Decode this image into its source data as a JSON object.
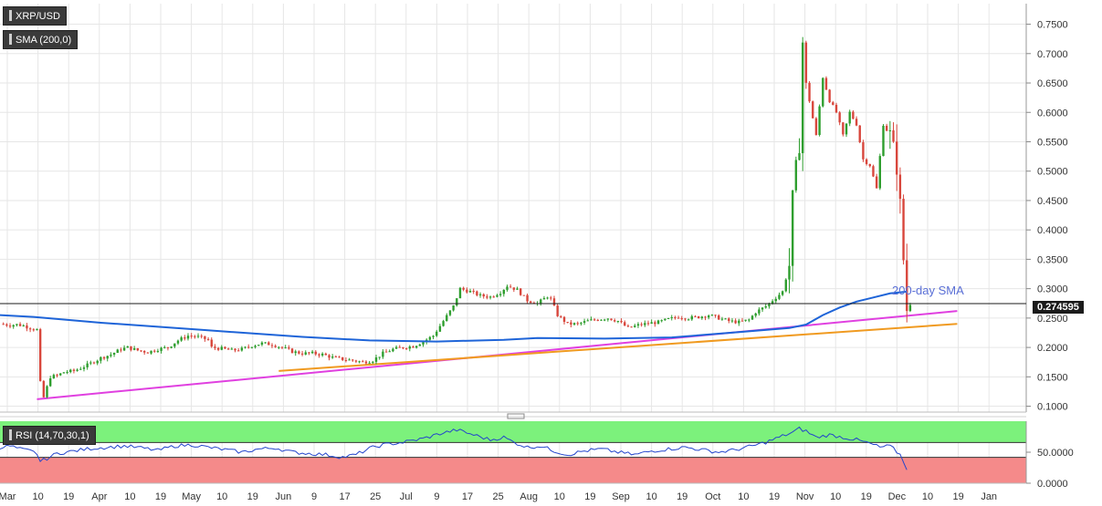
{
  "legend": {
    "symbol": "XRP/USD",
    "sma": "SMA (200,0)",
    "rsi": "RSI (14,70,30,1)"
  },
  "last_price": "0.274595",
  "annotations": {
    "sma_label": "200-day SMA"
  },
  "colors": {
    "background": "#ffffff",
    "grid": "#e6e6e6",
    "bull_candle": "#2e9e2e",
    "bear_candle": "#d8463c",
    "sma_line": "#1e64d8",
    "support_line": "#e040e0",
    "trend_line": "#f09a20",
    "rsi_line": "#2244cc",
    "rsi_overbought_zone": "#7cf17c",
    "rsi_oversold_zone": "#f58a8a"
  },
  "chart_data": [
    {
      "type": "candlestick",
      "title": "XRP/USD",
      "x_tick_labels": [
        "Mar",
        "10",
        "19",
        "Apr",
        "10",
        "19",
        "May",
        "10",
        "19",
        "Jun",
        "9",
        "17",
        "25",
        "Jul",
        "9",
        "17",
        "25",
        "Aug",
        "10",
        "19",
        "Sep",
        "10",
        "19",
        "Oct",
        "10",
        "19",
        "Nov",
        "10",
        "19",
        "Dec",
        "10",
        "19",
        "Jan"
      ],
      "y_tick_labels": [
        "0.1000",
        "0.1500",
        "0.2000",
        "0.2500",
        "0.3000",
        "0.3500",
        "0.4000",
        "0.4500",
        "0.5000",
        "0.5500",
        "0.6000",
        "0.6500",
        "0.7000",
        "0.7500"
      ],
      "ylim": [
        0.09,
        0.785
      ],
      "close_path": [
        [
          0,
          0.24
        ],
        [
          3,
          0.238
        ],
        [
          5,
          0.239
        ],
        [
          7,
          0.237
        ],
        [
          9,
          0.233
        ],
        [
          11,
          0.23
        ],
        [
          12,
          0.14
        ],
        [
          13,
          0.115
        ],
        [
          15,
          0.15
        ],
        [
          17,
          0.152
        ],
        [
          19,
          0.158
        ],
        [
          22,
          0.16
        ],
        [
          26,
          0.17
        ],
        [
          30,
          0.182
        ],
        [
          33,
          0.188
        ],
        [
          36,
          0.197
        ],
        [
          38,
          0.2
        ],
        [
          41,
          0.195
        ],
        [
          44,
          0.192
        ],
        [
          47,
          0.197
        ],
        [
          50,
          0.2
        ],
        [
          53,
          0.212
        ],
        [
          56,
          0.22
        ],
        [
          59,
          0.218
        ],
        [
          62,
          0.213
        ],
        [
          63,
          0.2
        ],
        [
          66,
          0.198
        ],
        [
          69,
          0.195
        ],
        [
          72,
          0.197
        ],
        [
          75,
          0.203
        ],
        [
          78,
          0.207
        ],
        [
          81,
          0.205
        ],
        [
          84,
          0.2
        ],
        [
          87,
          0.193
        ],
        [
          90,
          0.19
        ],
        [
          93,
          0.19
        ],
        [
          96,
          0.188
        ],
        [
          99,
          0.183
        ],
        [
          102,
          0.18
        ],
        [
          105,
          0.178
        ],
        [
          108,
          0.175
        ],
        [
          111,
          0.178
        ],
        [
          114,
          0.19
        ],
        [
          117,
          0.197
        ],
        [
          120,
          0.2
        ],
        [
          123,
          0.202
        ],
        [
          126,
          0.21
        ],
        [
          129,
          0.22
        ],
        [
          132,
          0.245
        ],
        [
          135,
          0.27
        ],
        [
          137,
          0.3
        ],
        [
          140,
          0.295
        ],
        [
          143,
          0.288
        ],
        [
          146,
          0.286
        ],
        [
          149,
          0.294
        ],
        [
          151,
          0.305
        ],
        [
          154,
          0.298
        ],
        [
          157,
          0.28
        ],
        [
          160,
          0.275
        ],
        [
          163,
          0.287
        ],
        [
          164,
          0.282
        ],
        [
          166,
          0.255
        ],
        [
          169,
          0.24
        ],
        [
          172,
          0.24
        ],
        [
          175,
          0.245
        ],
        [
          178,
          0.248
        ],
        [
          181,
          0.25
        ],
        [
          184,
          0.245
        ],
        [
          187,
          0.233
        ],
        [
          190,
          0.238
        ],
        [
          193,
          0.241
        ],
        [
          196,
          0.243
        ],
        [
          199,
          0.248
        ],
        [
          202,
          0.252
        ],
        [
          205,
          0.25
        ],
        [
          208,
          0.252
        ],
        [
          211,
          0.255
        ],
        [
          214,
          0.25
        ],
        [
          217,
          0.245
        ],
        [
          220,
          0.243
        ],
        [
          223,
          0.247
        ],
        [
          225,
          0.26
        ],
        [
          228,
          0.27
        ],
        [
          231,
          0.285
        ],
        [
          233,
          0.295
        ],
        [
          235,
          0.34
        ],
        [
          236,
          0.45
        ],
        [
          238,
          0.55
        ],
        [
          239,
          0.72
        ],
        [
          240,
          0.64
        ],
        [
          241,
          0.62
        ],
        [
          243,
          0.56
        ],
        [
          245,
          0.66
        ],
        [
          247,
          0.62
        ],
        [
          249,
          0.6
        ],
        [
          251,
          0.56
        ],
        [
          253,
          0.6
        ],
        [
          255,
          0.58
        ],
        [
          257,
          0.52
        ],
        [
          259,
          0.51
        ],
        [
          261,
          0.47
        ],
        [
          263,
          0.58
        ],
        [
          265,
          0.56
        ],
        [
          267,
          0.51
        ],
        [
          268,
          0.44
        ],
        [
          269,
          0.35
        ],
        [
          270,
          0.265
        ],
        [
          271,
          0.2746
        ]
      ],
      "volatility_days": [
        [
          235,
          240
        ],
        [
          265,
          270
        ]
      ],
      "sma_200_path": [
        [
          0,
          0.255
        ],
        [
          10,
          0.252
        ],
        [
          30,
          0.242
        ],
        [
          60,
          0.23
        ],
        [
          90,
          0.218
        ],
        [
          110,
          0.212
        ],
        [
          130,
          0.21
        ],
        [
          150,
          0.213
        ],
        [
          160,
          0.216
        ],
        [
          180,
          0.215
        ],
        [
          200,
          0.217
        ],
        [
          220,
          0.226
        ],
        [
          235,
          0.233
        ],
        [
          240,
          0.239
        ],
        [
          245,
          0.255
        ],
        [
          250,
          0.268
        ],
        [
          255,
          0.278
        ],
        [
          260,
          0.285
        ],
        [
          265,
          0.292
        ],
        [
          270,
          0.295
        ]
      ],
      "support_line": [
        [
          11,
          0.112
        ],
        [
          285,
          0.262
        ]
      ],
      "trend_line": [
        [
          83,
          0.16
        ],
        [
          285,
          0.24
        ]
      ],
      "last_price": 0.274595
    },
    {
      "type": "line",
      "title": "RSI (14,70,30,1)",
      "y_tick_labels": [
        "50.0000",
        "0.0000"
      ],
      "ylim": [
        0,
        100
      ],
      "overbought": 70,
      "oversold": 30,
      "values_path": [
        [
          0,
          58
        ],
        [
          3,
          60
        ],
        [
          6,
          55
        ],
        [
          9,
          52
        ],
        [
          11,
          48
        ],
        [
          12,
          35
        ],
        [
          14,
          40
        ],
        [
          17,
          48
        ],
        [
          22,
          52
        ],
        [
          27,
          56
        ],
        [
          32,
          58
        ],
        [
          37,
          60
        ],
        [
          42,
          57
        ],
        [
          47,
          53
        ],
        [
          52,
          60
        ],
        [
          57,
          62
        ],
        [
          62,
          58
        ],
        [
          67,
          54
        ],
        [
          72,
          50
        ],
        [
          77,
          55
        ],
        [
          82,
          57
        ],
        [
          87,
          50
        ],
        [
          92,
          48
        ],
        [
          97,
          46
        ],
        [
          102,
          42
        ],
        [
          106,
          46
        ],
        [
          110,
          56
        ],
        [
          114,
          62
        ],
        [
          120,
          66
        ],
        [
          126,
          72
        ],
        [
          131,
          80
        ],
        [
          136,
          86
        ],
        [
          141,
          78
        ],
        [
          146,
          70
        ],
        [
          150,
          74
        ],
        [
          153,
          66
        ],
        [
          157,
          58
        ],
        [
          161,
          60
        ],
        [
          165,
          52
        ],
        [
          169,
          46
        ],
        [
          174,
          52
        ],
        [
          179,
          55
        ],
        [
          184,
          50
        ],
        [
          189,
          46
        ],
        [
          194,
          52
        ],
        [
          199,
          55
        ],
        [
          204,
          58
        ],
        [
          209,
          54
        ],
        [
          214,
          50
        ],
        [
          219,
          54
        ],
        [
          224,
          60
        ],
        [
          228,
          66
        ],
        [
          232,
          74
        ],
        [
          236,
          82
        ],
        [
          238,
          88
        ],
        [
          240,
          84
        ],
        [
          243,
          74
        ],
        [
          247,
          78
        ],
        [
          251,
          74
        ],
        [
          255,
          70
        ],
        [
          259,
          64
        ],
        [
          262,
          58
        ],
        [
          265,
          60
        ],
        [
          268,
          46
        ],
        [
          270,
          24
        ]
      ]
    }
  ]
}
